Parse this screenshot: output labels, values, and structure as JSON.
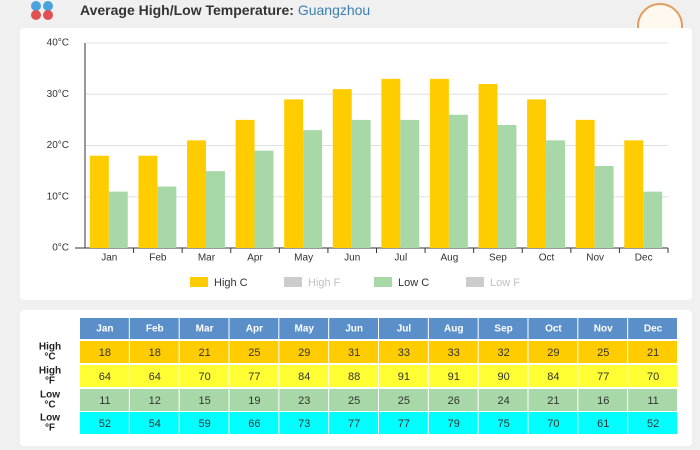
{
  "chart_data": {
    "type": "bar",
    "title": "Average High/Low Temperature:",
    "location": "Guangzhou",
    "categories": [
      "Jan",
      "Feb",
      "Mar",
      "Apr",
      "May",
      "Jun",
      "Jul",
      "Aug",
      "Sep",
      "Oct",
      "Nov",
      "Dec"
    ],
    "series": [
      {
        "name": "High C",
        "color": "#ffcc00",
        "visible": true,
        "values": [
          18,
          18,
          21,
          25,
          29,
          31,
          33,
          33,
          32,
          29,
          25,
          21
        ]
      },
      {
        "name": "High F",
        "color": "#ffff33",
        "visible": false,
        "values": [
          64,
          64,
          70,
          77,
          84,
          88,
          91,
          91,
          90,
          84,
          77,
          70
        ]
      },
      {
        "name": "Low C",
        "color": "#a8d8a8",
        "visible": true,
        "values": [
          11,
          12,
          15,
          19,
          23,
          25,
          25,
          26,
          24,
          21,
          16,
          11
        ]
      },
      {
        "name": "Low F",
        "color": "#00ffff",
        "visible": false,
        "values": [
          52,
          54,
          59,
          66,
          73,
          77,
          77,
          79,
          75,
          70,
          61,
          52
        ]
      }
    ],
    "ylim": [
      0,
      40
    ],
    "yticks": [
      {
        "value": 0,
        "label": "0°C"
      },
      {
        "value": 10,
        "label": "10°C"
      },
      {
        "value": 20,
        "label": "20°C"
      },
      {
        "value": 30,
        "label": "30°C"
      },
      {
        "value": 40,
        "label": "40°C"
      }
    ],
    "grid": true,
    "table_row_labels": [
      [
        "High",
        "°C"
      ],
      [
        "High",
        "°F"
      ],
      [
        "Low",
        "°C"
      ],
      [
        "Low",
        "°F"
      ]
    ]
  }
}
